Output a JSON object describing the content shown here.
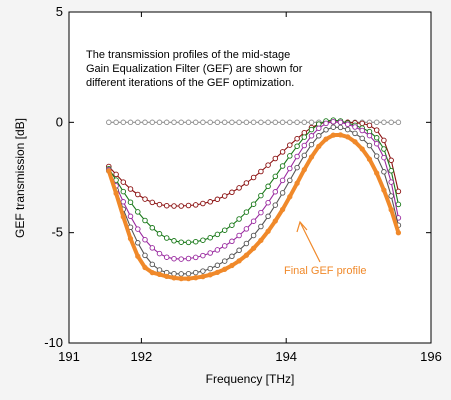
{
  "chart_data": {
    "type": "line",
    "xlabel": "Frequency [THz]",
    "ylabel": "GEF transmission [dB]",
    "xlim": [
      191,
      196
    ],
    "ylim": [
      -10,
      5
    ],
    "xticks": [
      "191",
      "192",
      "194",
      "196"
    ],
    "yticks": [
      "5",
      "0",
      "-5",
      "-10"
    ],
    "annotation": "The transmission profiles of the mid-stage Gain Equalization Filter (GEF) are shown for different iterations of the GEF optimization.",
    "final_label": "Final GEF profile",
    "x": [
      191.55,
      191.65,
      191.75,
      191.85,
      191.95,
      192.05,
      192.15,
      192.25,
      192.35,
      192.45,
      192.55,
      192.65,
      192.75,
      192.85,
      192.95,
      193.05,
      193.15,
      193.25,
      193.35,
      193.45,
      193.55,
      193.65,
      193.75,
      193.85,
      193.95,
      194.05,
      194.15,
      194.25,
      194.35,
      194.45,
      194.55,
      194.65,
      194.75,
      194.85,
      194.95,
      195.05,
      195.15,
      195.25,
      195.35,
      195.45,
      195.55
    ],
    "series": [
      {
        "color": "#909090",
        "values": [
          0,
          0,
          0,
          0,
          0,
          0,
          0,
          0,
          0,
          0,
          0,
          0,
          0,
          0,
          0,
          0,
          0,
          0,
          0,
          0,
          0,
          0,
          0,
          0,
          0,
          0,
          0,
          0,
          0,
          0,
          0,
          0,
          0,
          0,
          0,
          0,
          0,
          0,
          0,
          0,
          0
        ]
      },
      {
        "color": "#8b1010",
        "values": [
          -2.0,
          -2.36,
          -2.71,
          -3.02,
          -3.27,
          -3.48,
          -3.63,
          -3.73,
          -3.78,
          -3.79,
          -3.79,
          -3.77,
          -3.74,
          -3.68,
          -3.6,
          -3.49,
          -3.34,
          -3.17,
          -2.97,
          -2.75,
          -2.5,
          -2.23,
          -1.94,
          -1.64,
          -1.34,
          -1.03,
          -0.74,
          -0.47,
          -0.24,
          -0.08,
          0.01,
          0.03,
          0.02,
          0.0,
          -0.02,
          -0.05,
          -0.14,
          -0.35,
          -0.82,
          -1.72,
          -3.13
        ]
      },
      {
        "color": "#1a7a1a",
        "values": [
          -2.1,
          -2.62,
          -3.14,
          -3.62,
          -4.06,
          -4.45,
          -4.78,
          -5.05,
          -5.24,
          -5.37,
          -5.43,
          -5.44,
          -5.41,
          -5.34,
          -5.23,
          -5.08,
          -4.89,
          -4.66,
          -4.38,
          -4.07,
          -3.71,
          -3.32,
          -2.9,
          -2.45,
          -1.98,
          -1.52,
          -1.08,
          -0.67,
          -0.33,
          -0.08,
          0.06,
          0.1,
          0.06,
          -0.03,
          -0.14,
          -0.26,
          -0.42,
          -0.7,
          -1.21,
          -2.19,
          -3.72
        ]
      },
      {
        "color": "#9a2aa0",
        "values": [
          -2.15,
          -2.88,
          -3.6,
          -4.26,
          -4.84,
          -5.32,
          -5.69,
          -5.95,
          -6.11,
          -6.18,
          -6.2,
          -6.17,
          -6.12,
          -6.04,
          -5.92,
          -5.78,
          -5.6,
          -5.39,
          -5.13,
          -4.83,
          -4.48,
          -4.09,
          -3.64,
          -3.15,
          -2.63,
          -2.09,
          -1.55,
          -1.05,
          -0.61,
          -0.27,
          -0.05,
          0.03,
          0.0,
          -0.09,
          -0.21,
          -0.37,
          -0.6,
          -0.97,
          -1.6,
          -2.71,
          -4.33
        ]
      },
      {
        "color": "#555555",
        "values": [
          -2.2,
          -3.07,
          -3.94,
          -4.75,
          -5.46,
          -6.03,
          -6.44,
          -6.69,
          -6.81,
          -6.86,
          -6.87,
          -6.86,
          -6.81,
          -6.74,
          -6.63,
          -6.48,
          -6.29,
          -6.07,
          -5.8,
          -5.49,
          -5.13,
          -4.72,
          -4.26,
          -3.75,
          -3.2,
          -2.63,
          -2.05,
          -1.5,
          -1.01,
          -0.61,
          -0.34,
          -0.22,
          -0.23,
          -0.33,
          -0.5,
          -0.73,
          -1.05,
          -1.53,
          -2.24,
          -3.34,
          -4.66
        ]
      },
      {
        "color": "#f0892a",
        "values": [
          -2.2,
          -3.22,
          -4.28,
          -5.27,
          -6.07,
          -6.58,
          -6.81,
          -6.89,
          -6.98,
          -7.05,
          -7.08,
          -7.08,
          -7.04,
          -6.99,
          -6.91,
          -6.8,
          -6.66,
          -6.49,
          -6.28,
          -6.02,
          -5.71,
          -5.35,
          -4.94,
          -4.47,
          -3.95,
          -3.37,
          -2.76,
          -2.14,
          -1.57,
          -1.09,
          -0.76,
          -0.58,
          -0.57,
          -0.66,
          -0.88,
          -1.21,
          -1.67,
          -2.3,
          -3.07,
          -3.96,
          -5.0
        ]
      }
    ]
  }
}
